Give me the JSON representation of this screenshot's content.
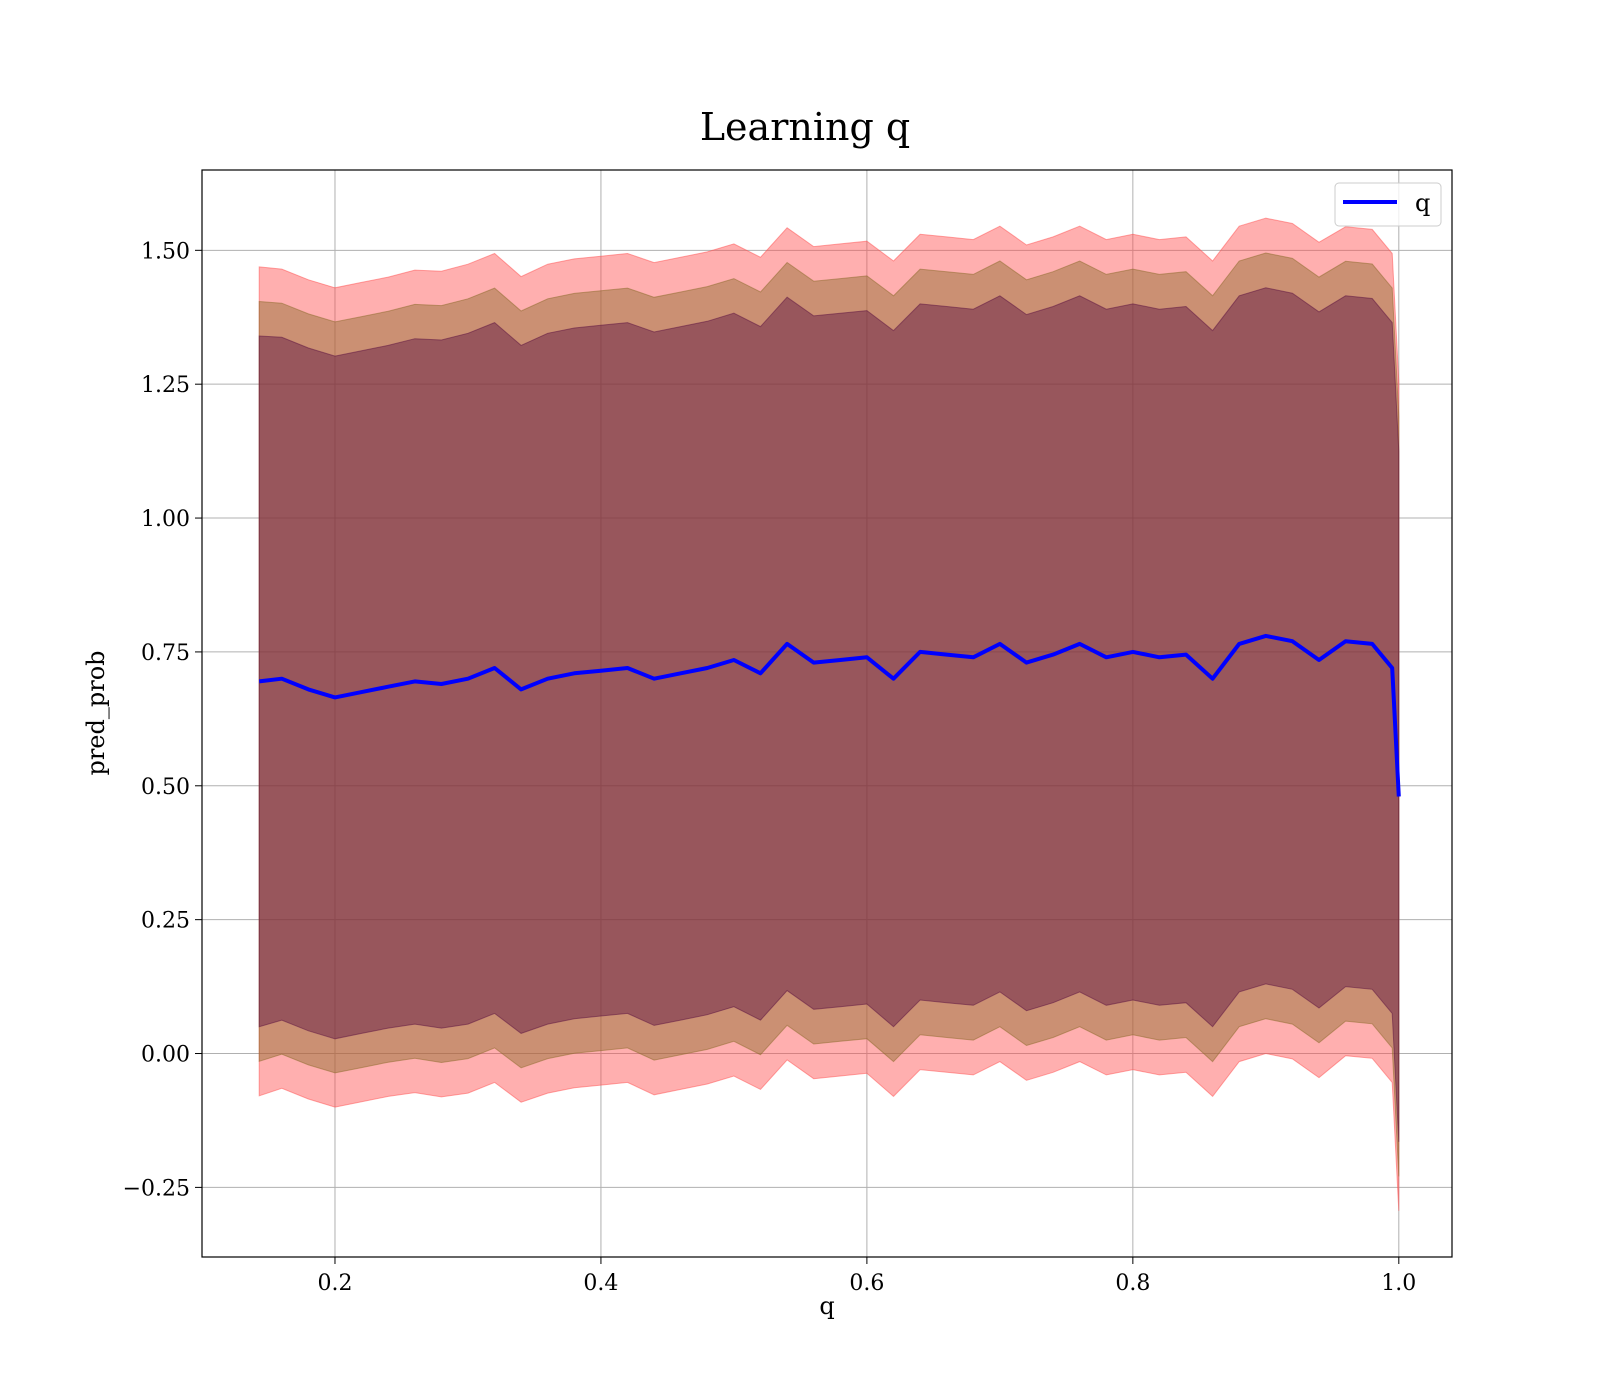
{
  "chart_data": {
    "type": "area",
    "title": "Learning q",
    "xlabel": "q",
    "ylabel": "pred_prob",
    "xlim": [
      0.1,
      1.04
    ],
    "ylim": [
      -0.38,
      1.65
    ],
    "grid": true,
    "legend": {
      "placement": "top-right",
      "entries": [
        "q"
      ]
    },
    "x_ticks": [
      {
        "value": 0.2,
        "label": "0.2"
      },
      {
        "value": 0.4,
        "label": "0.4"
      },
      {
        "value": 0.6,
        "label": "0.6"
      },
      {
        "value": 0.8,
        "label": "0.8"
      },
      {
        "value": 1.0,
        "label": "1.0"
      }
    ],
    "y_ticks": [
      {
        "value": -0.25,
        "label": "−0.25"
      },
      {
        "value": 0.0,
        "label": "0.00"
      },
      {
        "value": 0.25,
        "label": "0.25"
      },
      {
        "value": 0.5,
        "label": "0.50"
      },
      {
        "value": 0.75,
        "label": "0.75"
      },
      {
        "value": 1.0,
        "label": "1.00"
      },
      {
        "value": 1.25,
        "label": "1.25"
      },
      {
        "value": 1.5,
        "label": "1.50"
      }
    ],
    "x": [
      0.143,
      0.16,
      0.18,
      0.2,
      0.22,
      0.24,
      0.26,
      0.28,
      0.3,
      0.32,
      0.34,
      0.36,
      0.38,
      0.4,
      0.42,
      0.44,
      0.46,
      0.48,
      0.5,
      0.52,
      0.54,
      0.56,
      0.58,
      0.6,
      0.62,
      0.64,
      0.66,
      0.68,
      0.7,
      0.72,
      0.74,
      0.76,
      0.78,
      0.8,
      0.82,
      0.84,
      0.86,
      0.88,
      0.9,
      0.92,
      0.94,
      0.96,
      0.98,
      0.995,
      1.0
    ],
    "series": [
      {
        "name": "q",
        "color": "#0000ff",
        "values": [
          0.695,
          0.7,
          0.68,
          0.665,
          0.675,
          0.685,
          0.695,
          0.69,
          0.7,
          0.72,
          0.68,
          0.7,
          0.71,
          0.715,
          0.72,
          0.7,
          0.71,
          0.72,
          0.735,
          0.71,
          0.765,
          0.73,
          0.735,
          0.74,
          0.7,
          0.75,
          0.745,
          0.74,
          0.765,
          0.73,
          0.745,
          0.765,
          0.74,
          0.75,
          0.74,
          0.745,
          0.7,
          0.765,
          0.78,
          0.77,
          0.735,
          0.77,
          0.765,
          0.72,
          0.48
        ]
      }
    ],
    "bands": [
      {
        "color": "#ff4d4d",
        "opacity": 0.45,
        "k": 3
      },
      {
        "color": "#8b6a2a",
        "opacity": 0.45,
        "k": 2.75
      },
      {
        "color": "#5a1040",
        "opacity": 0.45,
        "k": 2.5
      }
    ],
    "band_halfwidth": [
      0.258,
      0.255,
      0.255,
      0.255,
      0.255,
      0.255,
      0.256,
      0.257,
      0.258,
      0.258,
      0.257,
      0.258,
      0.258,
      0.258,
      0.258,
      0.259,
      0.259,
      0.259,
      0.259,
      0.259,
      0.259,
      0.259,
      0.259,
      0.259,
      0.26,
      0.26,
      0.26,
      0.26,
      0.26,
      0.26,
      0.26,
      0.26,
      0.26,
      0.26,
      0.26,
      0.26,
      0.26,
      0.26,
      0.26,
      0.26,
      0.26,
      0.258,
      0.258,
      0.258,
      0.258
    ]
  }
}
